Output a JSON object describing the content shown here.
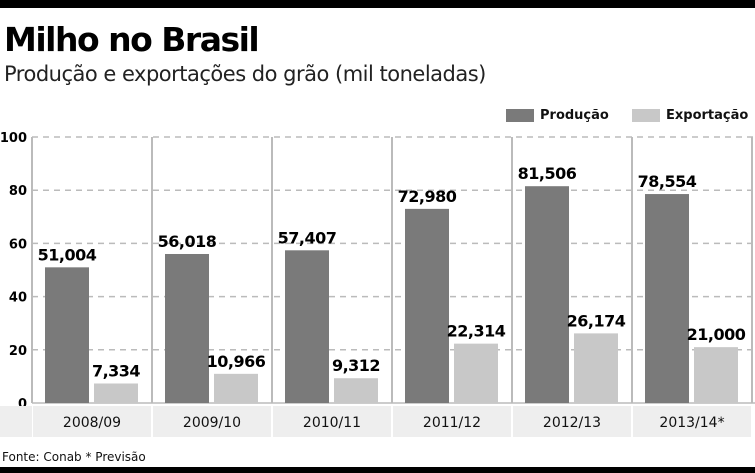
{
  "title": "Milho no Brasil",
  "subtitle": "Produção e exportações do grão (mil toneladas)",
  "source": "Fonte: Conab * Previsão",
  "colors": {
    "producao": "#7a7a7a",
    "exportacao": "#c8c8c8",
    "grid": "#bbbbbb",
    "label_band": "#eeeeee"
  },
  "chart_data": {
    "type": "bar",
    "title": "Milho no Brasil",
    "categories": [
      "2008/09",
      "2009/10",
      "2010/11",
      "2011/12",
      "2012/13",
      "2013/14*"
    ],
    "series": [
      {
        "name": "Produção",
        "values": [
          51004,
          56018,
          57407,
          72980,
          81506,
          78554
        ],
        "labels": [
          "51,004",
          "56,018",
          "57,407",
          "72,980",
          "81,506",
          "78,554"
        ]
      },
      {
        "name": "Exportação",
        "values": [
          7334,
          10966,
          9312,
          22314,
          26174,
          21000
        ],
        "labels": [
          "7,334",
          "10,966",
          "9,312",
          "22,314",
          "26,174",
          "21,000"
        ]
      }
    ],
    "yticks": [
      "0",
      "20",
      "40",
      "60",
      "80",
      "100"
    ],
    "ylim": [
      0,
      100
    ],
    "yunit_scale": 1000,
    "legend": "top-right",
    "grid": true
  }
}
